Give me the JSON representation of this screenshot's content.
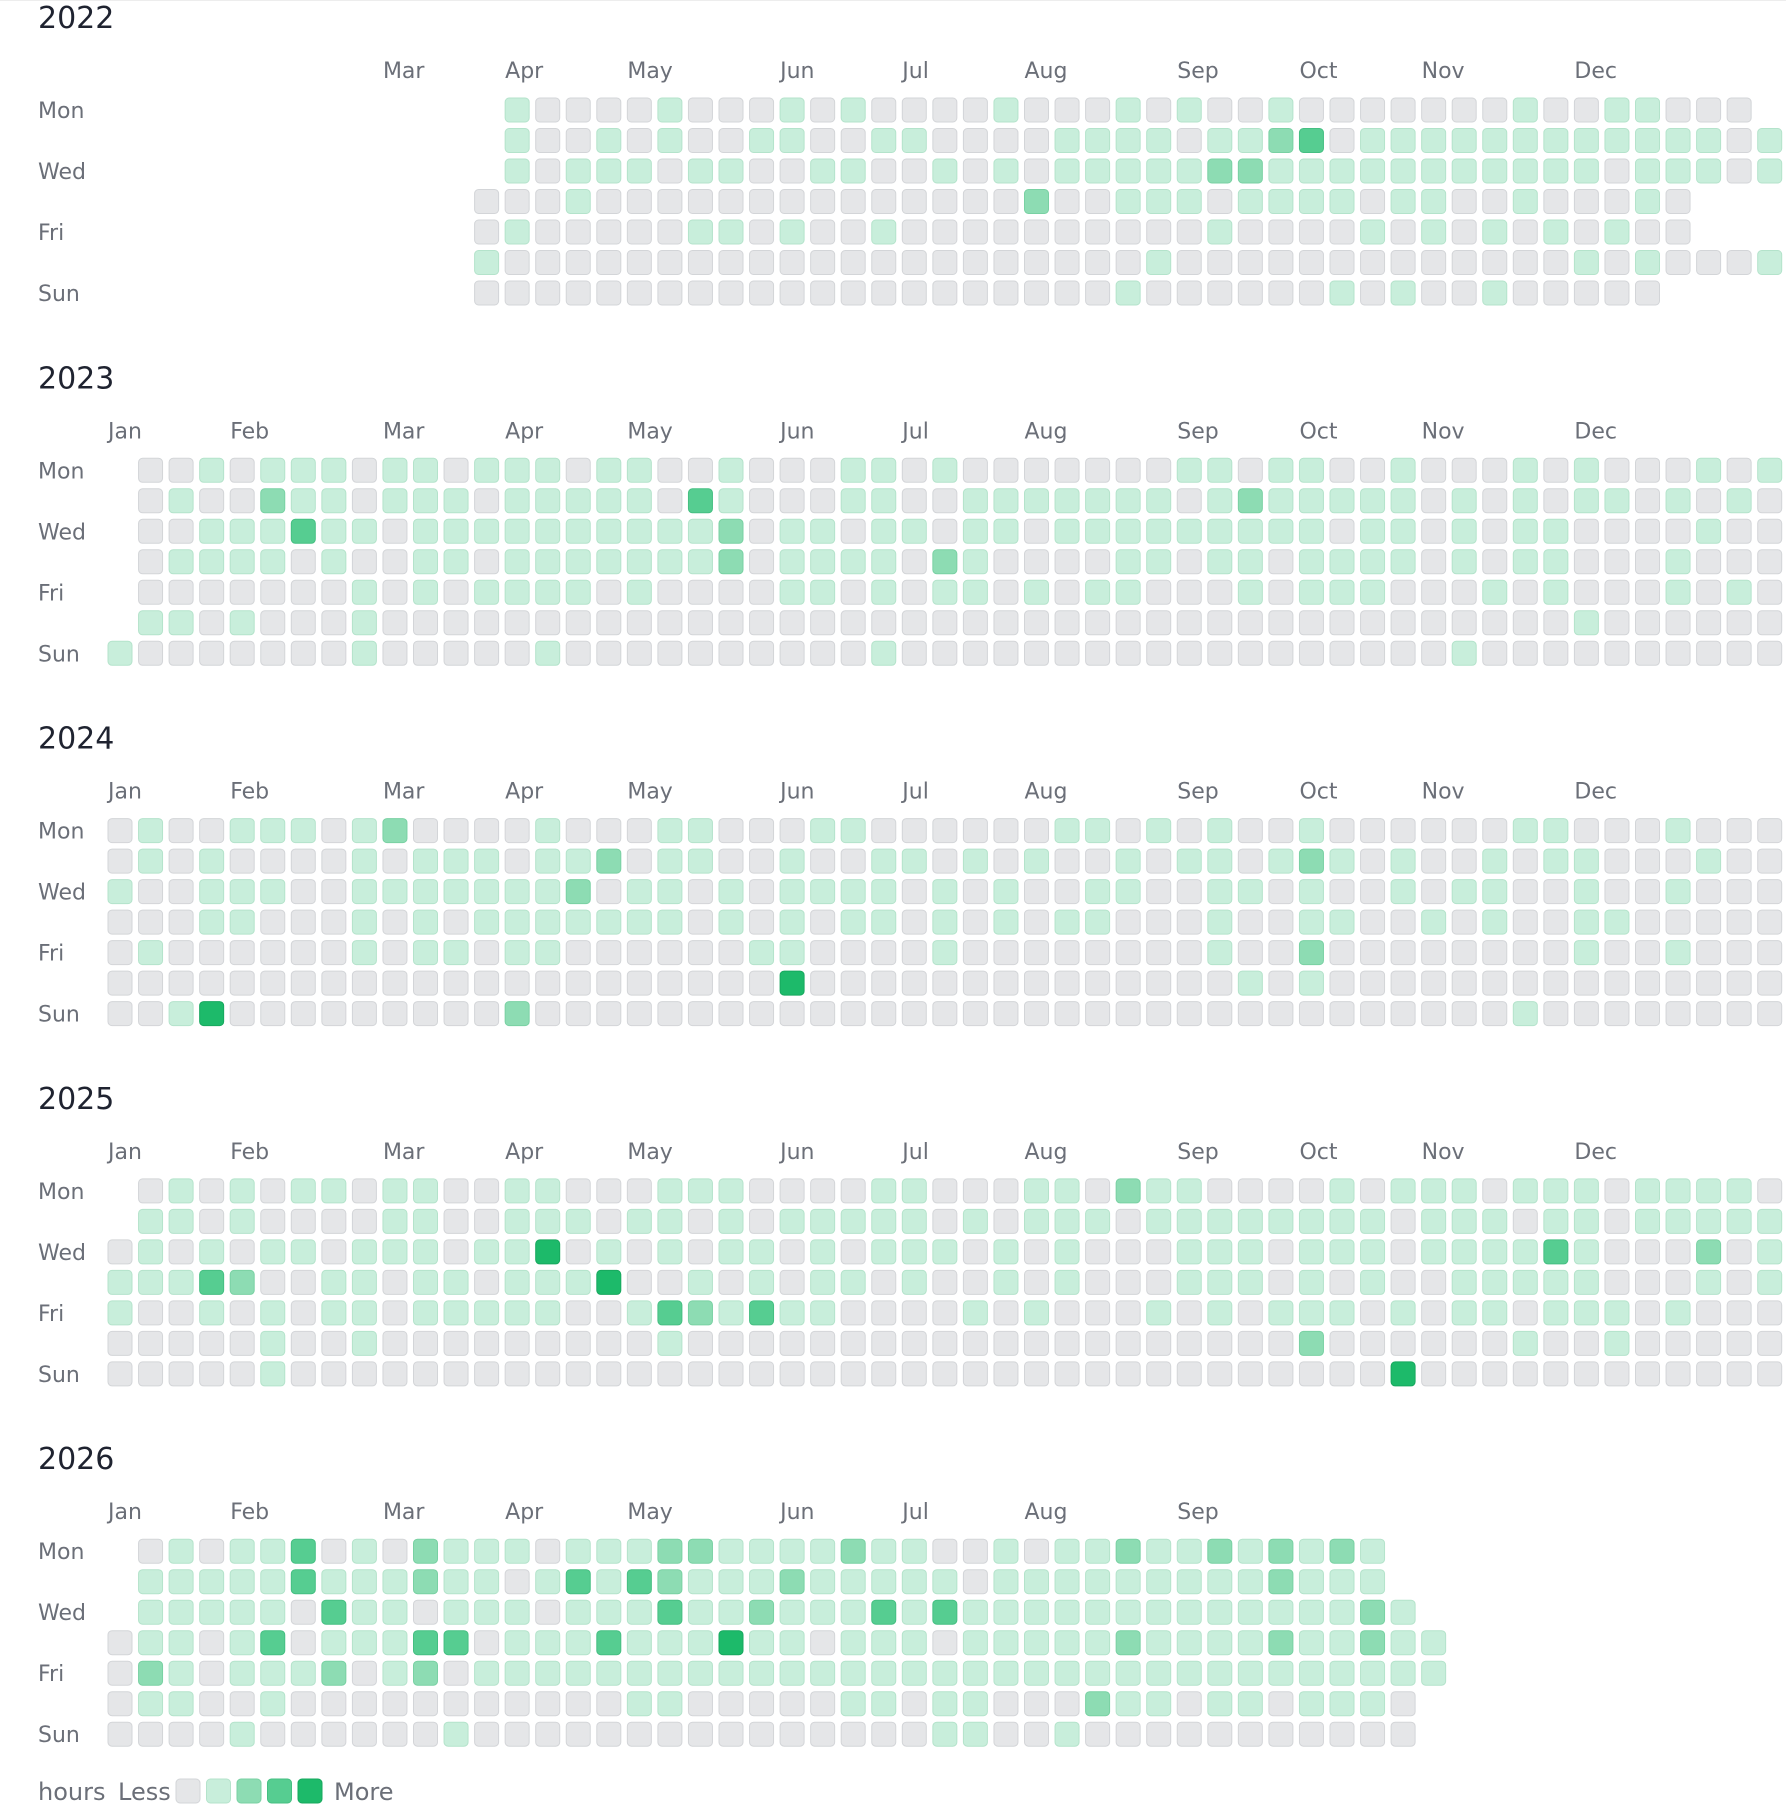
{
  "legend": {
    "unit": "hours",
    "less_label": "Less",
    "more_label": "More",
    "levels": [
      0,
      1,
      2,
      3,
      4
    ]
  },
  "colors": {
    "level_fill": [
      "#e5e6e8",
      "#c8eedb",
      "#8ddcb3",
      "#56cd91",
      "#1dba6a"
    ],
    "level_stroke": [
      "#d3d5d8",
      "#b4e3cb",
      "#79d1a3",
      "#45bf82",
      "#17a85e"
    ],
    "year_title": "#1f2330",
    "label": "#6b6f78"
  },
  "chart_data": {
    "type": "heatmap",
    "value_unit": "hours",
    "row_labels": [
      "Mon",
      "",
      "Wed",
      "",
      "Fri",
      "",
      "Sun"
    ],
    "years": [
      {
        "year": "2022",
        "months": [
          {
            "label": "Mar",
            "week": 9
          },
          {
            "label": "Apr",
            "week": 13
          },
          {
            "label": "May",
            "week": 17
          },
          {
            "label": "Jun",
            "week": 22
          },
          {
            "label": "Jul",
            "week": 26
          },
          {
            "label": "Aug",
            "week": 30
          },
          {
            "label": "Sep",
            "week": 35
          },
          {
            "label": "Oct",
            "week": 39
          },
          {
            "label": "Nov",
            "week": 43
          },
          {
            "label": "Dec",
            "week": 48
          }
        ],
        "rows": [
          "             10000100010100001000101001000000010011000",
          "             100101001100110000111101123011111111111101",
          "             101110110011001010111112211111111111011101",
          "            0001000000000000002001110111101100100010",
          "            0100000110100100000000001000010101010100",
          "            1000000000000000000000100000000000001010001",
          "            000000000000000000000100000010100100000"
        ]
      },
      {
        "year": "2023",
        "months": [
          {
            "label": "Jan",
            "week": 0
          },
          {
            "label": "Feb",
            "week": 4
          },
          {
            "label": "Mar",
            "week": 9
          },
          {
            "label": "Apr",
            "week": 13
          },
          {
            "label": "May",
            "week": 17
          },
          {
            "label": "Jun",
            "week": 22
          },
          {
            "label": "Jul",
            "week": 26
          },
          {
            "label": "Aug",
            "week": 30
          },
          {
            "label": "Sep",
            "week": 35
          },
          {
            "label": "Oct",
            "week": 39
          },
          {
            "label": "Nov",
            "week": 43
          },
          {
            "label": "Dec",
            "week": 48
          }
        ],
        "rows": [
          " 0010111011011101100100011010000000110110010001010001010",
          " 01002110111011111031000110011111110121111101010110101011",
          " 00111311011111111112011011011011111111101101011000010001",
          " 01111010011011111112011110210000110110111101011000100001",
          " 00000001010111101000011010110101100010111000101000101001",
          " 11010001000000000000000000000000000000000000000100000000",
          "10000000100000100000000001000000000000000000100000000000"
        ]
      },
      {
        "year": "2024",
        "months": [
          {
            "label": "Jan",
            "week": 0
          },
          {
            "label": "Feb",
            "week": 4
          },
          {
            "label": "Mar",
            "week": 9
          },
          {
            "label": "Apr",
            "week": 13
          },
          {
            "label": "May",
            "week": 17
          },
          {
            "label": "Jun",
            "week": 22
          },
          {
            "label": "Jul",
            "week": 26
          },
          {
            "label": "Aug",
            "week": 30
          },
          {
            "label": "Sep",
            "week": 35
          },
          {
            "label": "Oct",
            "week": 39
          },
          {
            "label": "Nov",
            "week": 43
          },
          {
            "label": "Dec",
            "week": 48
          }
        ],
        "rows": [
          "0100111012000010001100011000000110101001000000110001000",
          "0101000010111011201100100110101001011012101001011000100",
          "1001110011111112011010111101010011001101001011001001000",
          "0001100010101111111010101101010110001001100101001100000",
          "0100000010110110000001100001000000001002000000001001000",
          "0000000000000000000000400000000000000101000000000000000",
          "0014000000000200000000000000000000000000000000100000000"
        ]
      },
      {
        "year": "2025",
        "months": [
          {
            "label": "Jan",
            "week": 0
          },
          {
            "label": "Feb",
            "week": 4
          },
          {
            "label": "Mar",
            "week": 9
          },
          {
            "label": "Apr",
            "week": 13
          },
          {
            "label": "May",
            "week": 17
          },
          {
            "label": "Jun",
            "week": 22
          },
          {
            "label": "Jul",
            "week": 26
          },
          {
            "label": "Aug",
            "week": 30
          },
          {
            "label": "Sep",
            "week": 35
          },
          {
            "label": "Oct",
            "week": 39
          },
          {
            "label": "Nov",
            "week": 43
          },
          {
            "label": "Dec",
            "week": 48
          }
        ],
        "rows": [
          " 0101011011001100011100001100011021100001011101110111101",
          " 1101000011001110110101111101011101111111101110110111110",
          "01010110111011401010110101110101000111011101111310002011",
          "11132001101101114001010110100101000111010100111110001011",
          "1001010110111110013213110000101000101011101011011101000",
          "0000010010000000001000000000000000000002000000100100000",
          "0000010000000000000000000000000000000000004000000000000"
        ]
      },
      {
        "year": "2026",
        "months": [
          {
            "label": "Jan",
            "week": 0
          },
          {
            "label": "Feb",
            "week": 4
          },
          {
            "label": "Mar",
            "week": 9
          },
          {
            "label": "Apr",
            "week": 13
          },
          {
            "label": "May",
            "week": 17
          },
          {
            "label": "Jun",
            "week": 22
          },
          {
            "label": "Jul",
            "week": 26
          },
          {
            "label": "Aug",
            "week": 30
          },
          {
            "label": "Sep",
            "week": 35
          }
        ],
        "rows": [
          " 01011301021110111221111211001011211212121",
          " 11111311121101313211121111101111111112111",
          " 111110311011101113112111313111111111111121",
          "01101301113301113111411011101111121111211211",
          "02101112012011111111111111111111111111111111",
          "0110010000000000011000001101100021101101110",
          "0000100000010000000000000001100100000000000"
        ]
      }
    ]
  }
}
